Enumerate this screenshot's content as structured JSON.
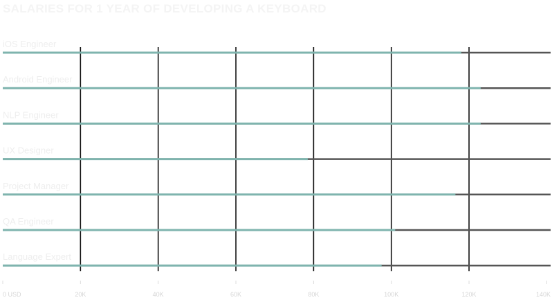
{
  "chart_data": {
    "type": "bar",
    "title": "SALARIES FOR 1 YEAR OF DEVELOPING A KEYBOARD",
    "categories": [
      "iOS Engineer",
      "Android Engineer",
      "NLP Engineer",
      "UX Designer",
      "Project Manager",
      "QA Engineer",
      "Language Expert"
    ],
    "values": [
      118000,
      123000,
      123000,
      78500,
      116500,
      101000,
      97500
    ],
    "xlim": [
      0,
      141000
    ],
    "ticks": [
      0,
      20000,
      40000,
      60000,
      80000,
      100000,
      120000,
      140000
    ],
    "tick_labels": [
      "0 USD",
      "20K",
      "40K",
      "60K",
      "80K",
      "100K",
      "120K",
      "140K"
    ],
    "grid": true,
    "colors": {
      "bar": "#7fb4ae",
      "track": "#555555",
      "grid": "#111111"
    }
  }
}
